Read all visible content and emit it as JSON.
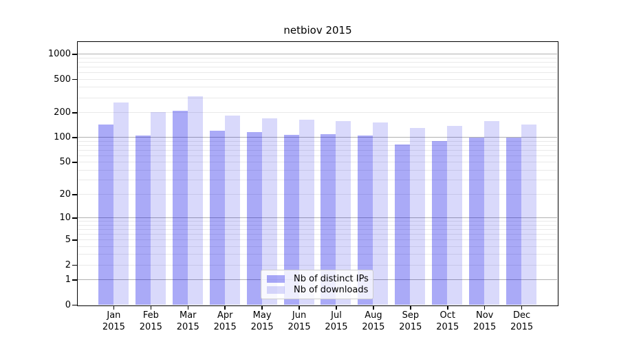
{
  "page": {
    "background": "#ffffff"
  },
  "chart_data": {
    "type": "bar",
    "title": "netbiov 2015",
    "categories": [
      "Jan 2015",
      "Feb 2015",
      "Mar 2015",
      "Apr 2015",
      "May 2015",
      "Jun 2015",
      "Jul 2015",
      "Aug 2015",
      "Sep 2015",
      "Oct 2015",
      "Nov 2015",
      "Dec 2015"
    ],
    "series": [
      {
        "name": "Nb of distinct IPs",
        "color": "#0000e6",
        "alpha": 0.335,
        "values": [
          142,
          105,
          210,
          121,
          116,
          107,
          110,
          106,
          82,
          90,
          100,
          99
        ]
      },
      {
        "name": "Nb of downloads",
        "color": "#0000e6",
        "alpha": 0.15,
        "values": [
          265,
          201,
          314,
          183,
          169,
          163,
          158,
          150,
          130,
          137,
          157,
          142
        ]
      }
    ],
    "xlabel": "",
    "ylabel": "",
    "y_scale": "log1p",
    "y_ticks": [
      0,
      1,
      2,
      5,
      10,
      20,
      50,
      100,
      200,
      500,
      1000
    ],
    "y_max": 1400,
    "grid": {
      "show": true,
      "major_color": "#b0b0b0",
      "minor_color": "#e9e9e9"
    },
    "legend": {
      "position": "inside-bottom-center",
      "border_color": "#cccccc",
      "background": "#ffffff"
    }
  }
}
